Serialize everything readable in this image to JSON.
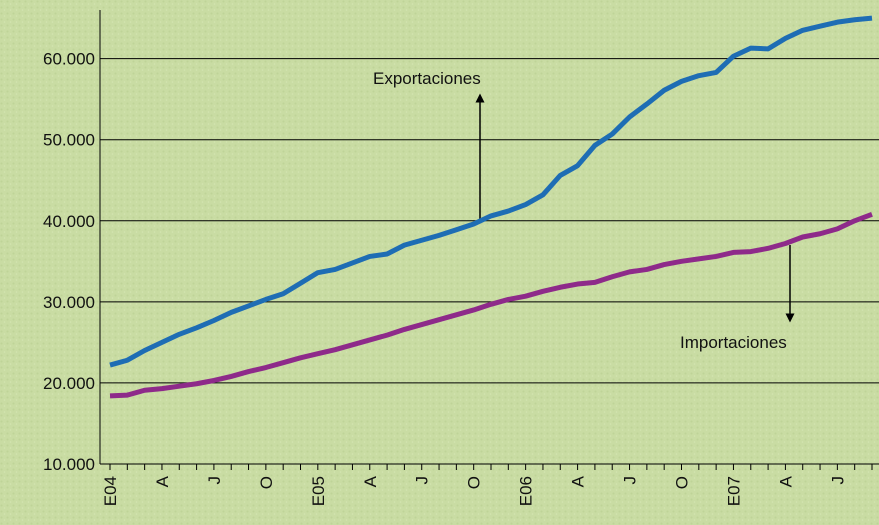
{
  "chart_data": {
    "type": "line",
    "categories": [
      "E04",
      null,
      null,
      "A",
      null,
      null,
      "J",
      null,
      null,
      "O",
      null,
      null,
      "E05",
      null,
      null,
      "A",
      null,
      null,
      "J",
      null,
      null,
      "O",
      null,
      null,
      "E06",
      null,
      null,
      "A",
      null,
      null,
      "J",
      null,
      null,
      "O",
      null,
      null,
      "E07",
      null,
      null,
      "A",
      null,
      null,
      "J",
      null,
      null
    ],
    "series": [
      {
        "name": "Exportaciones",
        "color": "#1e6db4",
        "values": [
          22200,
          22800,
          24000,
          25000,
          26000,
          26800,
          27700,
          28700,
          29500,
          30300,
          31000,
          32300,
          33600,
          34000,
          34800,
          35600,
          35900,
          37000,
          37600,
          38200,
          38900,
          39600,
          40600,
          41200,
          42000,
          43200,
          45600,
          46800,
          49300,
          50700,
          52800,
          54400,
          56100,
          57200,
          57900,
          58300,
          60300,
          61300,
          61200,
          62500,
          63500,
          64000,
          64500,
          64800,
          65000
        ]
      },
      {
        "name": "Importaciones",
        "color": "#8e2a8a",
        "values": [
          18400,
          18500,
          19100,
          19300,
          19600,
          19900,
          20300,
          20800,
          21400,
          21900,
          22500,
          23100,
          23600,
          24100,
          24700,
          25300,
          25900,
          26600,
          27200,
          27800,
          28400,
          29000,
          29700,
          30300,
          30700,
          31300,
          31800,
          32200,
          32400,
          33100,
          33700,
          34000,
          34600,
          35000,
          35300,
          35600,
          36100,
          36200,
          36600,
          37200,
          38000,
          38400,
          39000,
          40000,
          40800
        ]
      }
    ],
    "ylim": [
      10000,
      66000
    ],
    "yticks": [
      {
        "value": 10000,
        "label": "10.000"
      },
      {
        "value": 20000,
        "label": "20.000"
      },
      {
        "value": 30000,
        "label": "30.000"
      },
      {
        "value": 40000,
        "label": "40.000"
      },
      {
        "value": 50000,
        "label": "50.000"
      },
      {
        "value": 60000,
        "label": "60.000"
      }
    ],
    "grid": true
  }
}
